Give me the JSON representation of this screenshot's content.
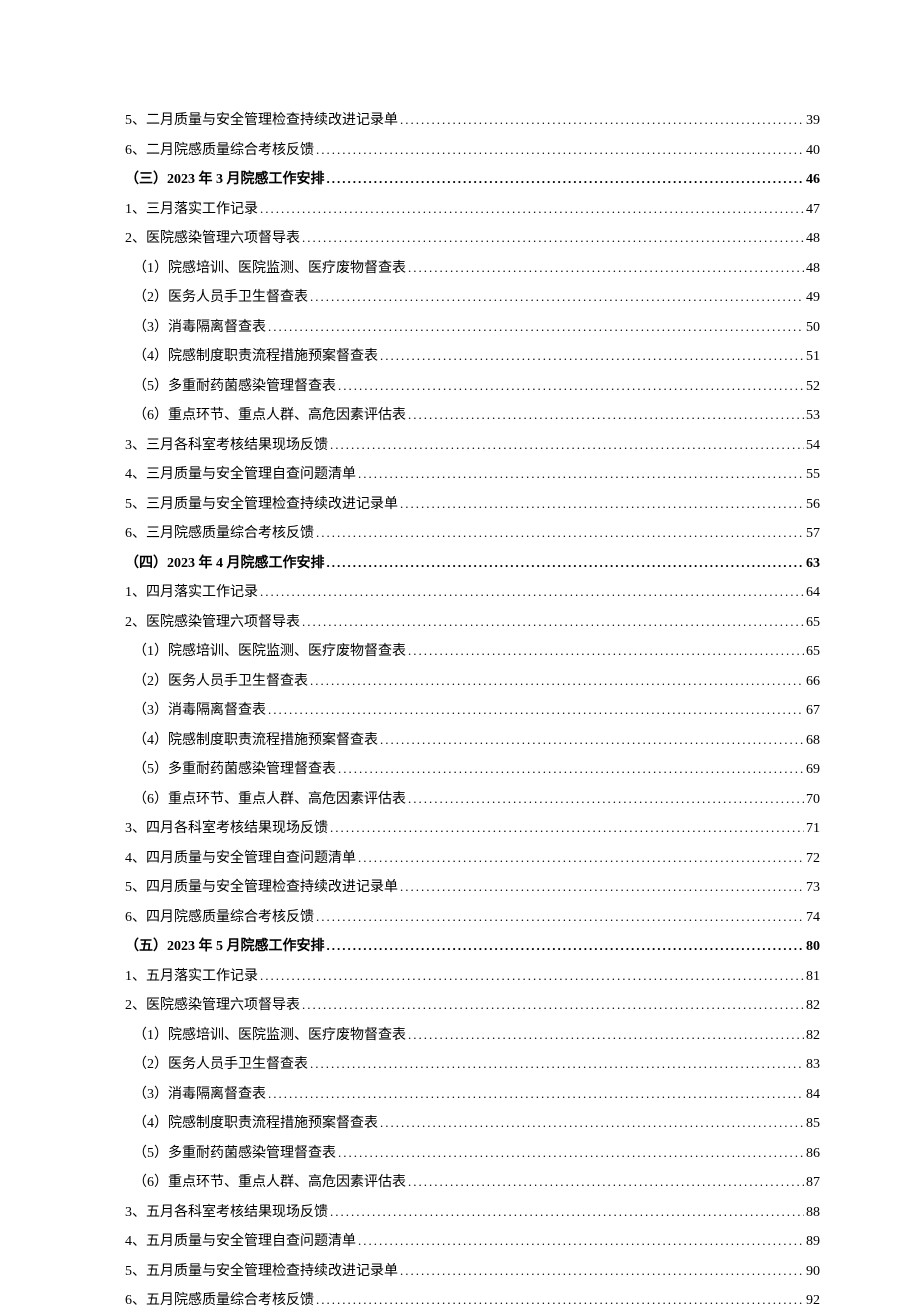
{
  "text_color": "#000000",
  "background_color": "#ffffff",
  "font_family": "SimSun",
  "base_font_size": 14,
  "toc": [
    {
      "label": "5、二月质量与安全管理检查持续改进记录单",
      "page": "39",
      "bold": false,
      "indent": 0
    },
    {
      "label": "6、二月院感质量综合考核反馈",
      "page": "40",
      "bold": false,
      "indent": 0
    },
    {
      "label": "（三）2023 年 3 月院感工作安排",
      "page": "46",
      "bold": true,
      "indent": 0
    },
    {
      "label": "1、三月落实工作记录",
      "page": "47",
      "bold": false,
      "indent": 0
    },
    {
      "label": "2、医院感染管理六项督导表",
      "page": "48",
      "bold": false,
      "indent": 0
    },
    {
      "label": "（1）院感培训、医院监测、医疗废物督查表",
      "page": "48",
      "bold": false,
      "indent": 1
    },
    {
      "label": "（2）医务人员手卫生督查表",
      "page": "49",
      "bold": false,
      "indent": 1
    },
    {
      "label": "（3）消毒隔离督查表",
      "page": "50",
      "bold": false,
      "indent": 1
    },
    {
      "label": "（4）院感制度职责流程措施预案督查表",
      "page": "51",
      "bold": false,
      "indent": 1
    },
    {
      "label": "（5）多重耐药菌感染管理督查表",
      "page": "52",
      "bold": false,
      "indent": 1
    },
    {
      "label": "（6）重点环节、重点人群、高危因素评估表",
      "page": "53",
      "bold": false,
      "indent": 1
    },
    {
      "label": "3、三月各科室考核结果现场反馈",
      "page": "54",
      "bold": false,
      "indent": 0
    },
    {
      "label": "4、三月质量与安全管理自查问题清单",
      "page": "55",
      "bold": false,
      "indent": 0
    },
    {
      "label": "5、三月质量与安全管理检查持续改进记录单",
      "page": "56",
      "bold": false,
      "indent": 0
    },
    {
      "label": "6、三月院感质量综合考核反馈",
      "page": "57",
      "bold": false,
      "indent": 0
    },
    {
      "label": "（四）2023 年 4 月院感工作安排",
      "page": "63",
      "bold": true,
      "indent": 0
    },
    {
      "label": "1、四月落实工作记录",
      "page": "64",
      "bold": false,
      "indent": 0
    },
    {
      "label": "2、医院感染管理六项督导表",
      "page": "65",
      "bold": false,
      "indent": 0
    },
    {
      "label": "（1）院感培训、医院监测、医疗废物督查表",
      "page": "65",
      "bold": false,
      "indent": 1
    },
    {
      "label": "（2）医务人员手卫生督查表",
      "page": "66",
      "bold": false,
      "indent": 1
    },
    {
      "label": "（3）消毒隔离督查表",
      "page": "67",
      "bold": false,
      "indent": 1
    },
    {
      "label": "（4）院感制度职责流程措施预案督查表",
      "page": "68",
      "bold": false,
      "indent": 1
    },
    {
      "label": "（5）多重耐药菌感染管理督查表",
      "page": "69",
      "bold": false,
      "indent": 1
    },
    {
      "label": "（6）重点环节、重点人群、高危因素评估表",
      "page": "70",
      "bold": false,
      "indent": 1
    },
    {
      "label": "3、四月各科室考核结果现场反馈",
      "page": "71",
      "bold": false,
      "indent": 0
    },
    {
      "label": "4、四月质量与安全管理自查问题清单",
      "page": "72",
      "bold": false,
      "indent": 0
    },
    {
      "label": "5、四月质量与安全管理检查持续改进记录单",
      "page": "73",
      "bold": false,
      "indent": 0
    },
    {
      "label": "6、四月院感质量综合考核反馈",
      "page": "74",
      "bold": false,
      "indent": 0
    },
    {
      "label": "（五）2023 年 5 月院感工作安排",
      "page": "80",
      "bold": true,
      "indent": 0
    },
    {
      "label": "1、五月落实工作记录",
      "page": "81",
      "bold": false,
      "indent": 0
    },
    {
      "label": "2、医院感染管理六项督导表",
      "page": "82",
      "bold": false,
      "indent": 0
    },
    {
      "label": "（1）院感培训、医院监测、医疗废物督查表",
      "page": "82",
      "bold": false,
      "indent": 1
    },
    {
      "label": "（2）医务人员手卫生督查表",
      "page": "83",
      "bold": false,
      "indent": 1
    },
    {
      "label": "（3）消毒隔离督查表",
      "page": "84",
      "bold": false,
      "indent": 1
    },
    {
      "label": "（4）院感制度职责流程措施预案督查表",
      "page": "85",
      "bold": false,
      "indent": 1
    },
    {
      "label": "（5）多重耐药菌感染管理督查表",
      "page": "86",
      "bold": false,
      "indent": 1
    },
    {
      "label": "（6）重点环节、重点人群、高危因素评估表",
      "page": "87",
      "bold": false,
      "indent": 1
    },
    {
      "label": "3、五月各科室考核结果现场反馈",
      "page": "88",
      "bold": false,
      "indent": 0
    },
    {
      "label": "4、五月质量与安全管理自查问题清单",
      "page": "89",
      "bold": false,
      "indent": 0
    },
    {
      "label": "5、五月质量与安全管理检查持续改进记录单",
      "page": "90",
      "bold": false,
      "indent": 0
    },
    {
      "label": "6、五月院感质量综合考核反馈",
      "page": "92",
      "bold": false,
      "indent": 0
    }
  ]
}
